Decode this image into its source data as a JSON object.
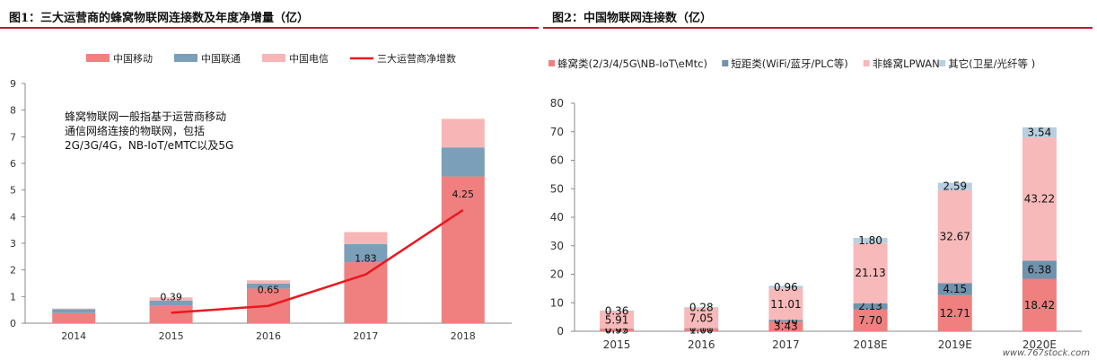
{
  "charts": {
    "left": {
      "title": "图1：三大运营商的蜂窝物联网连接数及年度净增量（亿）",
      "note_lines": [
        "蜂窝物联网一般指基于运营商移动",
        "通信网络连接的物联网，包括",
        "2G/3G/4G，NB-IoT/eMTC以及5G"
      ]
    },
    "right": {
      "title": "图2：中国物联网连接数（亿）"
    }
  },
  "watermark": "www.767stock.com",
  "colors": {
    "mobile": "#f07f7f",
    "unicom": "#7b9fb8",
    "telecom": "#f7b5b5",
    "line": "#e8191f",
    "cellular": "#f07f7f",
    "short": "#6f92ad",
    "lpwan": "#f7b9b9",
    "other": "#b8cfe0"
  },
  "chart_data": [
    {
      "type": "bar",
      "stacked": true,
      "title": "图1：三大运营商的蜂窝物联网连接数及年度净增量（亿）",
      "categories": [
        "2014",
        "2015",
        "2016",
        "2017",
        "2018"
      ],
      "series": [
        {
          "name": "中国移动",
          "type": "bar",
          "values": [
            0.38,
            0.65,
            1.3,
            2.29,
            5.51
          ]
        },
        {
          "name": "中国联通",
          "type": "bar",
          "values": [
            0.15,
            0.2,
            0.19,
            0.68,
            1.09
          ]
        },
        {
          "name": "中国电信",
          "type": "bar",
          "values": [
            0.02,
            0.12,
            0.12,
            0.45,
            1.07
          ]
        },
        {
          "name": "三大运营商净增数",
          "type": "line",
          "values": [
            null,
            0.39,
            0.65,
            1.83,
            4.25
          ]
        }
      ],
      "data_labels": [
        "",
        "0.39",
        "0.65",
        "1.83",
        "4.25"
      ],
      "ylim": [
        0,
        9
      ],
      "yticks": [
        0,
        1,
        2,
        3,
        4,
        5,
        6,
        7,
        8,
        9
      ],
      "grid": false,
      "legend": "top"
    },
    {
      "type": "bar",
      "stacked": true,
      "title": "图2：中国物联网连接数（亿）",
      "categories": [
        "2015",
        "2016",
        "2017",
        "2018E",
        "2019E",
        "2020E"
      ],
      "series": [
        {
          "name": "蜂窝类(2/3/4/5G\\NB-IoT\\eMtc)",
          "values": [
            0.95,
            1.0,
            3.43,
            7.7,
            12.71,
            18.42
          ],
          "labels": [
            "0.95",
            "1.00",
            "3.43",
            "7.70",
            "12.71",
            "18.42"
          ]
        },
        {
          "name": "短距类(WiFi/蓝牙/PLC等)",
          "values": [
            0.07,
            0.11,
            0.56,
            2.13,
            4.15,
            6.38
          ],
          "labels": [
            "0.07",
            "0.11",
            "0.56",
            "2.13",
            "4.15",
            "6.38"
          ]
        },
        {
          "name": "非蜂窝LPWAN",
          "values": [
            5.91,
            7.05,
            11.01,
            21.13,
            32.67,
            43.22
          ],
          "labels": [
            "5.91",
            "7.05",
            "11.01",
            "21.13",
            "32.67",
            "43.22"
          ]
        },
        {
          "name": "其它(卫星/光纤等 )",
          "values": [
            0.36,
            0.28,
            0.96,
            1.8,
            2.59,
            3.54
          ],
          "labels": [
            "0.36",
            "0.28",
            "0.96",
            "1.80",
            "2.59",
            "3.54"
          ]
        }
      ],
      "ylim": [
        0,
        80
      ],
      "yticks": [
        0,
        10,
        20,
        30,
        40,
        50,
        60,
        70,
        80
      ],
      "grid": false,
      "legend": "top"
    }
  ]
}
